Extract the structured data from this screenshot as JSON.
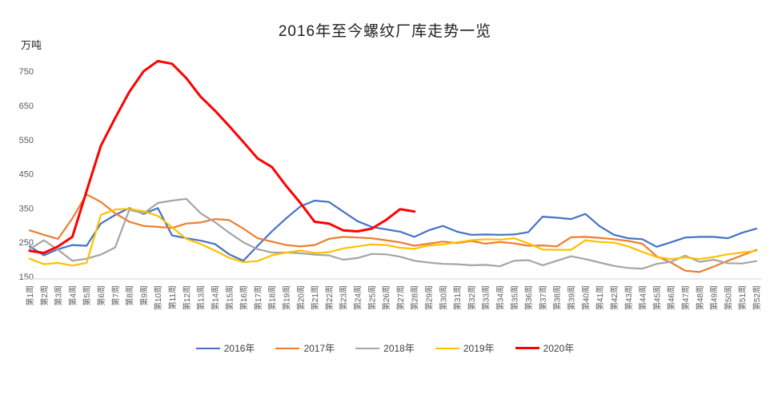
{
  "title": "2016年至今螺纹厂库走势一览",
  "unit_label": "万吨",
  "chart_data": {
    "type": "line",
    "title": "2016年至今螺纹厂库走势一览",
    "xlabel": "",
    "ylabel": "万吨",
    "ylim": [
      150,
      750
    ],
    "yticks": [
      150,
      250,
      350,
      450,
      550,
      650,
      750
    ],
    "grid": false,
    "legend_position": "bottom",
    "axis_color": "#d9d9d9",
    "tick_label_color": "#595959",
    "categories": [
      "第1周",
      "第2周",
      "第3周",
      "第4周",
      "第5周",
      "第6周",
      "第7周",
      "第8周",
      "第9周",
      "第10周",
      "第11周",
      "第12周",
      "第13周",
      "第14周",
      "第15周",
      "第16周",
      "第17周",
      "第18周",
      "第19周",
      "第20周",
      "第21周",
      "第22周",
      "第23周",
      "第24周",
      "第25周",
      "第26周",
      "第27周",
      "第28周",
      "第29周",
      "第30周",
      "第31周",
      "第32周",
      "第33周",
      "第34周",
      "第35周",
      "第36周",
      "第37周",
      "第38周",
      "第39周",
      "第40周",
      "第41周",
      "第42周",
      "第43周",
      "第44周",
      "第45周",
      "第46周",
      "第47周",
      "第48周",
      "第49周",
      "第50周",
      "第51周",
      "第52周"
    ],
    "series": [
      {
        "name": "2016年",
        "color": "#4472C4",
        "line_width": 2.2,
        "values": [
          238,
          212,
          230,
          242,
          240,
          305,
          330,
          350,
          333,
          350,
          270,
          262,
          255,
          245,
          215,
          196,
          240,
          282,
          320,
          355,
          372,
          368,
          340,
          312,
          295,
          288,
          281,
          266,
          285,
          298,
          281,
          272,
          273,
          272,
          273,
          280,
          325,
          322,
          318,
          333,
          297,
          272,
          262,
          259,
          237,
          250,
          264,
          266,
          266,
          262,
          278,
          290
        ]
      },
      {
        "name": "2017年",
        "color": "#ED7D31",
        "line_width": 2.2,
        "values": [
          285,
          272,
          260,
          320,
          390,
          368,
          335,
          310,
          298,
          295,
          292,
          305,
          308,
          318,
          315,
          290,
          262,
          252,
          242,
          238,
          242,
          260,
          266,
          264,
          262,
          256,
          250,
          240,
          246,
          252,
          248,
          254,
          246,
          251,
          247,
          240,
          241,
          238,
          265,
          266,
          263,
          259,
          254,
          246,
          209,
          191,
          167,
          163,
          179,
          196,
          212,
          228
        ]
      },
      {
        "name": "2018年",
        "color": "#A5A5A5",
        "line_width": 2.2,
        "values": [
          230,
          256,
          228,
          196,
          202,
          214,
          235,
          345,
          335,
          365,
          372,
          377,
          335,
          309,
          278,
          250,
          230,
          220,
          220,
          218,
          214,
          212,
          199,
          204,
          216,
          215,
          208,
          196,
          191,
          187,
          186,
          183,
          184,
          180,
          196,
          198,
          183,
          196,
          209,
          201,
          191,
          181,
          175,
          173,
          187,
          193,
          211,
          193,
          199,
          189,
          188,
          195
        ]
      },
      {
        "name": "2019年",
        "color": "#FFC000",
        "line_width": 2.2,
        "values": [
          202,
          186,
          190,
          182,
          190,
          330,
          346,
          348,
          341,
          327,
          294,
          260,
          245,
          226,
          205,
          192,
          195,
          212,
          220,
          226,
          219,
          221,
          232,
          238,
          244,
          242,
          234,
          231,
          241,
          244,
          250,
          256,
          259,
          258,
          262,
          247,
          229,
          228,
          228,
          256,
          251,
          249,
          238,
          222,
          207,
          201,
          206,
          201,
          207,
          215,
          220,
          225
        ]
      },
      {
        "name": "2020年",
        "color": "#FF0000",
        "line_width": 3,
        "values": [
          225,
          219,
          238,
          266,
          400,
          532,
          613,
          690,
          750,
          780,
          772,
          730,
          676,
          635,
          590,
          543,
          495,
          470,
          415,
          365,
          310,
          305,
          285,
          282,
          290,
          315,
          347,
          340
        ]
      }
    ]
  }
}
